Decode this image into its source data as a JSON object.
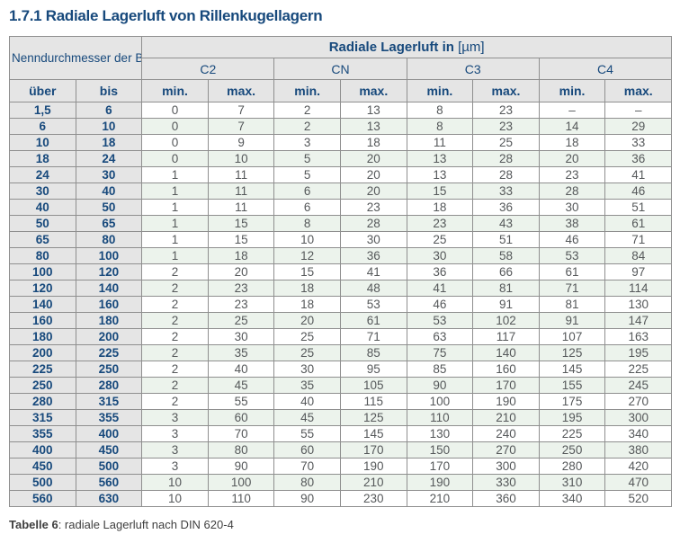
{
  "title": "1.7.1 Radiale Lagerluft von Rillenkugellagern",
  "table": {
    "corner_header": "Nenndurchmesser der Bohrung d [mm]",
    "main_header_bold": "Radiale Lagerluft in",
    "main_header_unit": "[µm]",
    "groups": [
      "C2",
      "CN",
      "C3",
      "C4"
    ],
    "sub_headers": [
      "über",
      "bis",
      "min.",
      "max.",
      "min.",
      "max.",
      "min.",
      "max.",
      "min.",
      "max."
    ],
    "rows": [
      [
        "1,5",
        "6",
        "0",
        "7",
        "2",
        "13",
        "8",
        "23",
        "–",
        "–"
      ],
      [
        "6",
        "10",
        "0",
        "7",
        "2",
        "13",
        "8",
        "23",
        "14",
        "29"
      ],
      [
        "10",
        "18",
        "0",
        "9",
        "3",
        "18",
        "11",
        "25",
        "18",
        "33"
      ],
      [
        "18",
        "24",
        "0",
        "10",
        "5",
        "20",
        "13",
        "28",
        "20",
        "36"
      ],
      [
        "24",
        "30",
        "1",
        "11",
        "5",
        "20",
        "13",
        "28",
        "23",
        "41"
      ],
      [
        "30",
        "40",
        "1",
        "11",
        "6",
        "20",
        "15",
        "33",
        "28",
        "46"
      ],
      [
        "40",
        "50",
        "1",
        "11",
        "6",
        "23",
        "18",
        "36",
        "30",
        "51"
      ],
      [
        "50",
        "65",
        "1",
        "15",
        "8",
        "28",
        "23",
        "43",
        "38",
        "61"
      ],
      [
        "65",
        "80",
        "1",
        "15",
        "10",
        "30",
        "25",
        "51",
        "46",
        "71"
      ],
      [
        "80",
        "100",
        "1",
        "18",
        "12",
        "36",
        "30",
        "58",
        "53",
        "84"
      ],
      [
        "100",
        "120",
        "2",
        "20",
        "15",
        "41",
        "36",
        "66",
        "61",
        "97"
      ],
      [
        "120",
        "140",
        "2",
        "23",
        "18",
        "48",
        "41",
        "81",
        "71",
        "114"
      ],
      [
        "140",
        "160",
        "2",
        "23",
        "18",
        "53",
        "46",
        "91",
        "81",
        "130"
      ],
      [
        "160",
        "180",
        "2",
        "25",
        "20",
        "61",
        "53",
        "102",
        "91",
        "147"
      ],
      [
        "180",
        "200",
        "2",
        "30",
        "25",
        "71",
        "63",
        "117",
        "107",
        "163"
      ],
      [
        "200",
        "225",
        "2",
        "35",
        "25",
        "85",
        "75",
        "140",
        "125",
        "195"
      ],
      [
        "225",
        "250",
        "2",
        "40",
        "30",
        "95",
        "85",
        "160",
        "145",
        "225"
      ],
      [
        "250",
        "280",
        "2",
        "45",
        "35",
        "105",
        "90",
        "170",
        "155",
        "245"
      ],
      [
        "280",
        "315",
        "2",
        "55",
        "40",
        "115",
        "100",
        "190",
        "175",
        "270"
      ],
      [
        "315",
        "355",
        "3",
        "60",
        "45",
        "125",
        "110",
        "210",
        "195",
        "300"
      ],
      [
        "355",
        "400",
        "3",
        "70",
        "55",
        "145",
        "130",
        "240",
        "225",
        "340"
      ],
      [
        "400",
        "450",
        "3",
        "80",
        "60",
        "170",
        "150",
        "270",
        "250",
        "380"
      ],
      [
        "450",
        "500",
        "3",
        "90",
        "70",
        "190",
        "170",
        "300",
        "280",
        "420"
      ],
      [
        "500",
        "560",
        "10",
        "100",
        "80",
        "210",
        "190",
        "330",
        "310",
        "470"
      ],
      [
        "560",
        "630",
        "10",
        "110",
        "90",
        "230",
        "210",
        "360",
        "340",
        "520"
      ]
    ]
  },
  "caption": {
    "label": "Tabelle 6",
    "text": ": radiale Lagerluft nach DIN 620-4"
  },
  "colors": {
    "heading_blue": "#17497c",
    "header_bg_gray": "#e5e5e5",
    "stripe_green": "#ecf3ec",
    "data_text_gray": "#55585a",
    "border_gray": "#8f8f8f"
  }
}
